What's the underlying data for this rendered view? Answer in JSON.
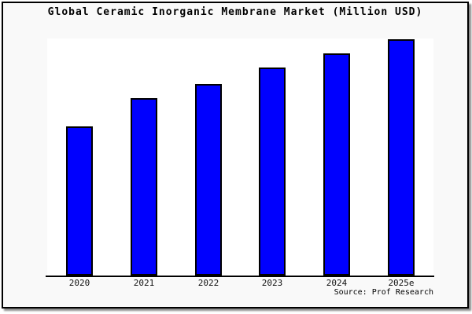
{
  "page": {
    "background_color": "#ffffff"
  },
  "card": {
    "background_color": "#f9f9f9",
    "border_color": "#000000",
    "shadow_color": "#737373"
  },
  "chart_data": {
    "type": "bar",
    "title": "Global Ceramic Inorganic Membrane Market (Million USD)",
    "categories": [
      "2020",
      "2021",
      "2022",
      "2023",
      "2024",
      "2025e"
    ],
    "values": [
      63,
      75,
      81,
      88,
      94,
      100
    ],
    "values_note": "no y-axis scale or data labels shown in image; values estimated from bar heights relative to tallest bar (2025e = 100)",
    "xlabel": "",
    "ylabel": "",
    "ylim": [
      0,
      100
    ],
    "grid": false,
    "legend": null,
    "bar_color": "#0000fe",
    "bar_border_color": "#000000",
    "plot_background": "#ffffff",
    "axis_line_color": "#000000",
    "source_note": "Source: Prof Research"
  }
}
